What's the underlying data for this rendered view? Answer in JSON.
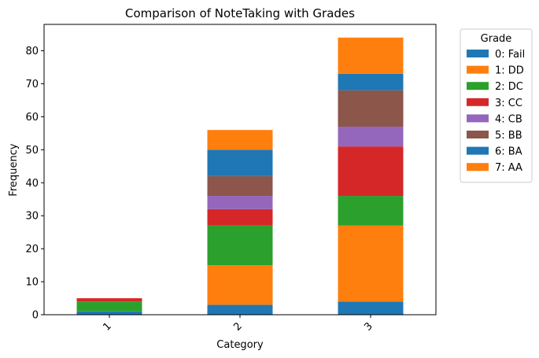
{
  "chart_data": {
    "type": "bar",
    "stacked": true,
    "title": "Comparison of NoteTaking with Grades",
    "xlabel": "Category",
    "ylabel": "Frequency",
    "categories": [
      "1",
      "2",
      "3"
    ],
    "ylim": [
      0,
      88
    ],
    "yticks": [
      0,
      10,
      20,
      30,
      40,
      50,
      60,
      70,
      80
    ],
    "grid": false,
    "legend": {
      "title": "Grade",
      "placement": "outside-right"
    },
    "series": [
      {
        "name": "0: Fail",
        "color": "#1f77b4",
        "values": [
          1,
          3,
          4
        ]
      },
      {
        "name": "1: DD",
        "color": "#ff7f0e",
        "values": [
          0,
          12,
          23
        ]
      },
      {
        "name": "2: DC",
        "color": "#2ca02c",
        "values": [
          3,
          12,
          9
        ]
      },
      {
        "name": "3: CC",
        "color": "#d62728",
        "values": [
          1,
          5,
          15
        ]
      },
      {
        "name": "4: CB",
        "color": "#9467bd",
        "values": [
          0,
          4,
          6
        ]
      },
      {
        "name": "5: BB",
        "color": "#8c564b",
        "values": [
          0,
          6,
          11
        ]
      },
      {
        "name": "6: BA",
        "color": "#1f77b4",
        "values": [
          0,
          8,
          5
        ]
      },
      {
        "name": "7: AA",
        "color": "#ff7f0e",
        "values": [
          0,
          6,
          11
        ]
      }
    ]
  }
}
